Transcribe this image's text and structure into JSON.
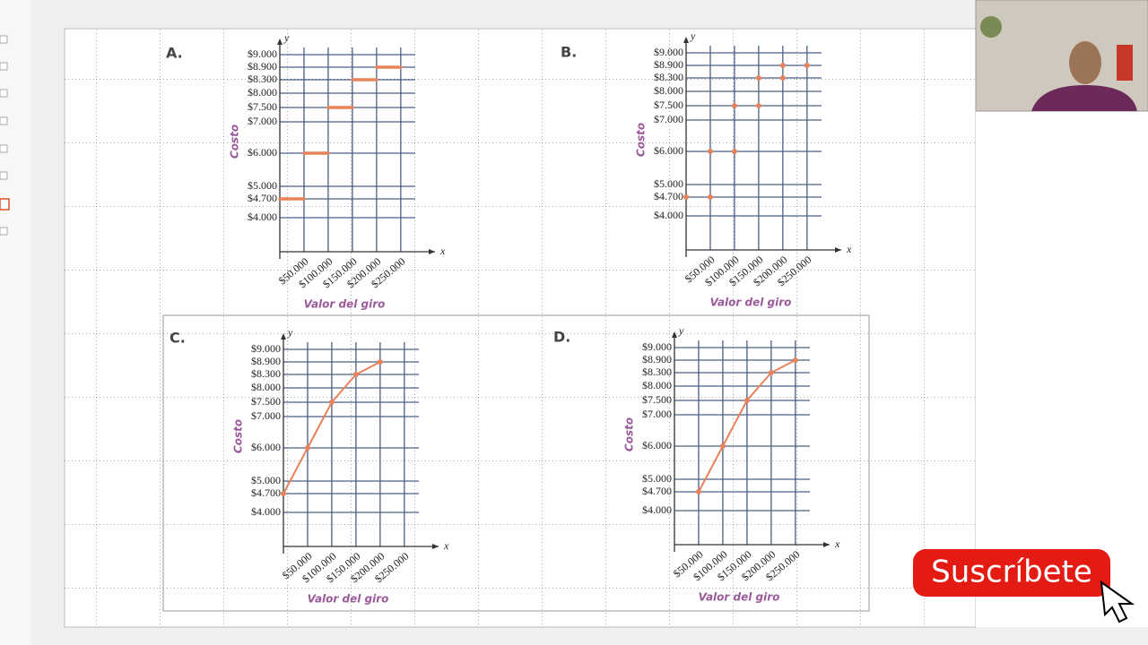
{
  "chart_data": [
    {
      "type": "step",
      "panel": "A.",
      "xlabel": "Valor del giro",
      "ylabel": "Costo",
      "x_axis_name": "x",
      "y_axis_name": "y",
      "color": "#e8825a",
      "x": [
        0,
        50000,
        100000,
        150000,
        200000
      ],
      "x_end": [
        50000,
        100000,
        150000,
        200000,
        250000
      ],
      "values": [
        4700,
        6000,
        7500,
        8300,
        8900
      ],
      "xlim": [
        0,
        280000
      ],
      "ylim": [
        3000,
        9000
      ],
      "xticks": [
        {
          "value": 50000,
          "label": "$50.000"
        },
        {
          "value": 100000,
          "label": "$100.000"
        },
        {
          "value": 150000,
          "label": "$150.000"
        },
        {
          "value": 200000,
          "label": "$200.000"
        },
        {
          "value": 250000,
          "label": "$250.000"
        }
      ],
      "yticks": [
        {
          "value": 4000,
          "label": "$4.000"
        },
        {
          "value": 4700,
          "label": "$4.700"
        },
        {
          "value": 5000,
          "label": "$5.000"
        },
        {
          "value": 6000,
          "label": "$6.000"
        },
        {
          "value": 7000,
          "label": "$7.000"
        },
        {
          "value": 7500,
          "label": "$7.500"
        },
        {
          "value": 8000,
          "label": "$8.000"
        },
        {
          "value": 8300,
          "label": "$8.300"
        },
        {
          "value": 8900,
          "label": "$8.900"
        },
        {
          "value": 9000,
          "label": "$9.000"
        }
      ]
    },
    {
      "type": "scatter",
      "panel": "B.",
      "xlabel": "Valor del giro",
      "ylabel": "Costo",
      "x_axis_name": "x",
      "y_axis_name": "y",
      "color": "#e8825a",
      "x": [
        0,
        50000,
        50000,
        100000,
        100000,
        150000,
        150000,
        200000,
        200000,
        250000
      ],
      "values": [
        4700,
        4700,
        6000,
        6000,
        7500,
        7500,
        8300,
        8300,
        8900,
        8900
      ],
      "xlim": [
        0,
        280000
      ],
      "ylim": [
        3000,
        9000
      ],
      "xticks": [
        {
          "value": 50000,
          "label": "$50.000"
        },
        {
          "value": 100000,
          "label": "$100.000"
        },
        {
          "value": 150000,
          "label": "$150.000"
        },
        {
          "value": 200000,
          "label": "$200.000"
        },
        {
          "value": 250000,
          "label": "$250.000"
        }
      ],
      "yticks": [
        {
          "value": 4000,
          "label": "$4.000"
        },
        {
          "value": 4700,
          "label": "$4.700"
        },
        {
          "value": 5000,
          "label": "$5.000"
        },
        {
          "value": 6000,
          "label": "$6.000"
        },
        {
          "value": 7000,
          "label": "$7.000"
        },
        {
          "value": 7500,
          "label": "$7.500"
        },
        {
          "value": 8000,
          "label": "$8.000"
        },
        {
          "value": 8300,
          "label": "$8.300"
        },
        {
          "value": 8900,
          "label": "$8.900"
        },
        {
          "value": 9000,
          "label": "$9.000"
        }
      ]
    },
    {
      "type": "line",
      "panel": "C.",
      "xlabel": "Valor del giro",
      "ylabel": "Costo",
      "x_axis_name": "x",
      "y_axis_name": "y",
      "color": "#e8825a",
      "x": [
        0,
        50000,
        100000,
        150000,
        200000
      ],
      "values": [
        4700,
        6000,
        7500,
        8300,
        8900
      ],
      "xlim": [
        0,
        280000
      ],
      "ylim": [
        3000,
        9000
      ],
      "xticks": [
        {
          "value": 50000,
          "label": "$50.000"
        },
        {
          "value": 100000,
          "label": "$100.000"
        },
        {
          "value": 150000,
          "label": "$150.000"
        },
        {
          "value": 200000,
          "label": "$200.000"
        },
        {
          "value": 250000,
          "label": "$250.000"
        }
      ],
      "yticks": [
        {
          "value": 4000,
          "label": "$4.000"
        },
        {
          "value": 4700,
          "label": "$4.700"
        },
        {
          "value": 5000,
          "label": "$5.000"
        },
        {
          "value": 6000,
          "label": "$6.000"
        },
        {
          "value": 7000,
          "label": "$7.000"
        },
        {
          "value": 7500,
          "label": "$7.500"
        },
        {
          "value": 8000,
          "label": "$8.000"
        },
        {
          "value": 8300,
          "label": "$8.300"
        },
        {
          "value": 8900,
          "label": "$8.900"
        },
        {
          "value": 9000,
          "label": "$9.000"
        }
      ]
    },
    {
      "type": "line",
      "panel": "D.",
      "xlabel": "Valor del giro",
      "ylabel": "Costo",
      "x_axis_name": "x",
      "y_axis_name": "y",
      "color": "#e8825a",
      "x": [
        50000,
        100000,
        150000,
        200000,
        250000
      ],
      "values": [
        4700,
        6000,
        7500,
        8300,
        8900
      ],
      "xlim": [
        0,
        280000
      ],
      "ylim": [
        3000,
        9000
      ],
      "xticks": [
        {
          "value": 50000,
          "label": "$50.000"
        },
        {
          "value": 100000,
          "label": "$100.000"
        },
        {
          "value": 150000,
          "label": "$150.000"
        },
        {
          "value": 200000,
          "label": "$200.000"
        },
        {
          "value": 250000,
          "label": "$250.000"
        }
      ],
      "yticks": [
        {
          "value": 4000,
          "label": "$4.000"
        },
        {
          "value": 4700,
          "label": "$4.700"
        },
        {
          "value": 5000,
          "label": "$5.000"
        },
        {
          "value": 6000,
          "label": "$6.000"
        },
        {
          "value": 7000,
          "label": "$7.000"
        },
        {
          "value": 7500,
          "label": "$7.500"
        },
        {
          "value": 8000,
          "label": "$8.000"
        },
        {
          "value": 8300,
          "label": "$8.300"
        },
        {
          "value": 8900,
          "label": "$8.900"
        },
        {
          "value": 9000,
          "label": "$9.000"
        }
      ]
    }
  ],
  "button": {
    "label": "Suscríbete"
  }
}
